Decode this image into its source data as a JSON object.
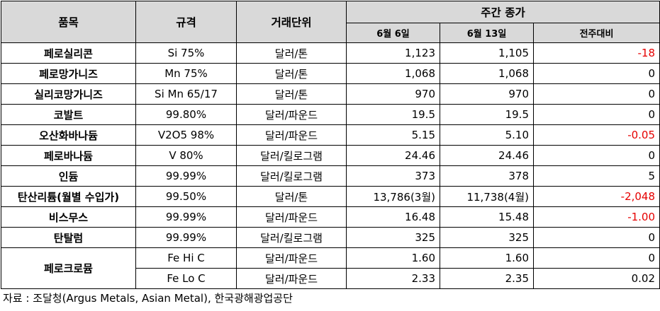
{
  "headers": {
    "item": "품목",
    "spec": "규격",
    "unit": "거래단위",
    "weekly_close": "주간 종가",
    "prev_week": "6월 6일",
    "this_week": "6월 13일",
    "change": "전주대비"
  },
  "rows": [
    {
      "item": "페로실리콘",
      "spec": "Si 75%",
      "unit": "달러/톤",
      "prev": "1,123",
      "curr": "1,105",
      "change": "-18",
      "neg": true
    },
    {
      "item": "페로망가니즈",
      "spec": "Mn 75%",
      "unit": "달러/톤",
      "prev": "1,068",
      "curr": "1,068",
      "change": "0",
      "neg": false
    },
    {
      "item": "실리코망가니즈",
      "spec": "Si Mn 65/17",
      "unit": "달러/톤",
      "prev": "970",
      "curr": "970",
      "change": "0",
      "neg": false
    },
    {
      "item": "코발트",
      "spec": "99.80%",
      "unit": "달러/파운드",
      "prev": "19.5",
      "curr": "19.5",
      "change": "0",
      "neg": false
    },
    {
      "item": "오산화바나듐",
      "spec": "V2O5 98%",
      "unit": "달러/파운드",
      "prev": "5.15",
      "curr": "5.10",
      "change": "-0.05",
      "neg": true
    },
    {
      "item": "페로바나듐",
      "spec": "V 80%",
      "unit": "달러/킬로그램",
      "prev": "24.46",
      "curr": "24.46",
      "change": "0",
      "neg": false
    },
    {
      "item": "인듐",
      "spec": "99.99%",
      "unit": "달러/킬로그램",
      "prev": "373",
      "curr": "378",
      "change": "5",
      "neg": false
    },
    {
      "item": "탄산리튬(월별 수입가)",
      "spec": "99.50%",
      "unit": "달러/톤",
      "prev": "13,786(3월)",
      "curr": "11,738(4월)",
      "change": "-2,048",
      "neg": true
    },
    {
      "item": "비스무스",
      "spec": "99.99%",
      "unit": "달러/파운드",
      "prev": "16.48",
      "curr": "15.48",
      "change": "-1.00",
      "neg": true
    },
    {
      "item": "탄탈럼",
      "spec": "99.99%",
      "unit": "달러/킬로그램",
      "prev": "325",
      "curr": "325",
      "change": "0",
      "neg": false
    }
  ],
  "ferrochrome": {
    "item": "페로크로뮴",
    "variants": [
      {
        "spec": "Fe Hi C",
        "unit": "달러/파운드",
        "prev": "1.60",
        "curr": "1.60",
        "change": "0"
      },
      {
        "spec": "Fe Lo C",
        "unit": "달러/파운드",
        "prev": "2.33",
        "curr": "2.35",
        "change": "0.02"
      }
    ]
  },
  "source": "자료 : 조달청(Argus Metals, Asian Metal), 한국광해광업공단"
}
